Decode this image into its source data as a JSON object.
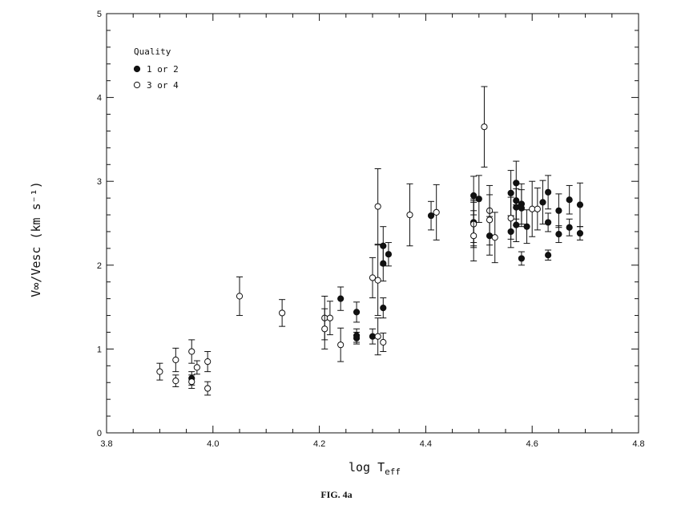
{
  "caption": "FIG. 4a",
  "chart_data": {
    "type": "scatter",
    "xlabel_main": "log T",
    "xlabel_sub": "eff",
    "ylabel": "V∞/Vesc (km s⁻¹)",
    "xlim": [
      3.8,
      4.8
    ],
    "ylim": [
      0,
      5
    ],
    "x_ticks": [
      3.8,
      4.0,
      4.2,
      4.4,
      4.6,
      4.8
    ],
    "x_tick_labels": [
      "3.8",
      "4.0",
      "4.2",
      "4.4",
      "4.6",
      "4.8"
    ],
    "y_ticks": [
      0,
      1,
      2,
      3,
      4,
      5
    ],
    "y_tick_labels": [
      "0",
      "1",
      "2",
      "3",
      "4",
      "5"
    ],
    "legend": {
      "title": "Quality",
      "placement": "top-left",
      "entries": [
        "1 or 2",
        "3 or 4"
      ]
    },
    "series": [
      {
        "name": "1 or 2",
        "marker": "filled-circle",
        "points": [
          {
            "x": 3.96,
            "y": 0.65,
            "err": 0.08
          },
          {
            "x": 4.24,
            "y": 1.6,
            "err": 0.14
          },
          {
            "x": 4.27,
            "y": 1.44,
            "err": 0.12
          },
          {
            "x": 4.27,
            "y": 1.16,
            "err": 0.08
          },
          {
            "x": 4.27,
            "y": 1.13,
            "err": 0.07
          },
          {
            "x": 4.3,
            "y": 1.15,
            "err": 0.09
          },
          {
            "x": 4.32,
            "y": 2.23,
            "err": 0.23
          },
          {
            "x": 4.32,
            "y": 2.02,
            "err": 0.21
          },
          {
            "x": 4.32,
            "y": 1.49,
            "err": 0.12
          },
          {
            "x": 4.33,
            "y": 2.13,
            "err": 0.14
          },
          {
            "x": 4.41,
            "y": 2.59,
            "err": 0.17
          },
          {
            "x": 4.49,
            "y": 2.51,
            "err": 0.28
          },
          {
            "x": 4.49,
            "y": 2.83,
            "err": 0.23
          },
          {
            "x": 4.49,
            "y": 2.51,
            "err": 0.24
          },
          {
            "x": 4.5,
            "y": 2.79,
            "err": 0.28
          },
          {
            "x": 4.52,
            "y": 2.35,
            "err": 0.23
          },
          {
            "x": 4.56,
            "y": 2.86,
            "err": 0.27
          },
          {
            "x": 4.56,
            "y": 2.4,
            "err": 0.19
          },
          {
            "x": 4.57,
            "y": 2.98,
            "err": 0.26
          },
          {
            "x": 4.57,
            "y": 2.77,
            "err": 0.22
          },
          {
            "x": 4.57,
            "y": 2.69,
            "err": 0.22
          },
          {
            "x": 4.57,
            "y": 2.48,
            "err": 0.2
          },
          {
            "x": 4.58,
            "y": 2.73,
            "err": 0.24
          },
          {
            "x": 4.58,
            "y": 2.68,
            "err": 0.22
          },
          {
            "x": 4.58,
            "y": 2.08,
            "err": 0.08
          },
          {
            "x": 4.59,
            "y": 2.46,
            "err": 0.2
          },
          {
            "x": 4.62,
            "y": 2.75,
            "err": 0.26
          },
          {
            "x": 4.63,
            "y": 2.87,
            "err": 0.2
          },
          {
            "x": 4.63,
            "y": 2.51,
            "err": 0.11
          },
          {
            "x": 4.63,
            "y": 2.12,
            "err": 0.06
          },
          {
            "x": 4.65,
            "y": 2.65,
            "err": 0.2
          },
          {
            "x": 4.65,
            "y": 2.37,
            "err": 0.1
          },
          {
            "x": 4.67,
            "y": 2.78,
            "err": 0.17
          },
          {
            "x": 4.67,
            "y": 2.45,
            "err": 0.1
          },
          {
            "x": 4.69,
            "y": 2.72,
            "err": 0.26
          },
          {
            "x": 4.69,
            "y": 2.38,
            "err": 0.08
          }
        ]
      },
      {
        "name": "3 or 4",
        "marker": "open-circle",
        "points": [
          {
            "x": 3.9,
            "y": 0.73,
            "err": 0.1
          },
          {
            "x": 3.93,
            "y": 0.87,
            "err": 0.14
          },
          {
            "x": 3.93,
            "y": 0.62,
            "err": 0.07
          },
          {
            "x": 3.96,
            "y": 0.97,
            "err": 0.14
          },
          {
            "x": 3.96,
            "y": 0.61,
            "err": 0.08
          },
          {
            "x": 3.97,
            "y": 0.78,
            "err": 0.08
          },
          {
            "x": 3.99,
            "y": 0.85,
            "err": 0.12
          },
          {
            "x": 3.99,
            "y": 0.53,
            "err": 0.08
          },
          {
            "x": 4.05,
            "y": 1.63,
            "err": 0.23
          },
          {
            "x": 4.13,
            "y": 1.43,
            "err": 0.16
          },
          {
            "x": 4.21,
            "y": 1.37,
            "err": 0.26
          },
          {
            "x": 4.21,
            "y": 1.24,
            "err": 0.24
          },
          {
            "x": 4.22,
            "y": 1.37,
            "err": 0.2
          },
          {
            "x": 4.24,
            "y": 1.05,
            "err": 0.2
          },
          {
            "x": 4.3,
            "y": 1.85,
            "err": 0.24
          },
          {
            "x": 4.31,
            "y": 2.7,
            "err": 0.45
          },
          {
            "x": 4.31,
            "y": 1.82,
            "err": 0.42
          },
          {
            "x": 4.31,
            "y": 1.15,
            "err": 0.22
          },
          {
            "x": 4.32,
            "y": 1.08,
            "err": 0.11
          },
          {
            "x": 4.37,
            "y": 2.6,
            "err": 0.37
          },
          {
            "x": 4.42,
            "y": 2.63,
            "err": 0.33
          },
          {
            "x": 4.49,
            "y": 2.49,
            "err": 0.28
          },
          {
            "x": 4.49,
            "y": 2.35,
            "err": 0.3
          },
          {
            "x": 4.51,
            "y": 3.65,
            "err": 0.48
          },
          {
            "x": 4.52,
            "y": 2.65,
            "err": 0.3
          },
          {
            "x": 4.52,
            "y": 2.54,
            "err": 0.3
          },
          {
            "x": 4.53,
            "y": 2.33,
            "err": 0.3
          },
          {
            "x": 4.56,
            "y": 2.56,
            "err": 0.25
          },
          {
            "x": 4.6,
            "y": 2.67,
            "err": 0.33
          },
          {
            "x": 4.61,
            "y": 2.67,
            "err": 0.25
          }
        ]
      }
    ]
  }
}
